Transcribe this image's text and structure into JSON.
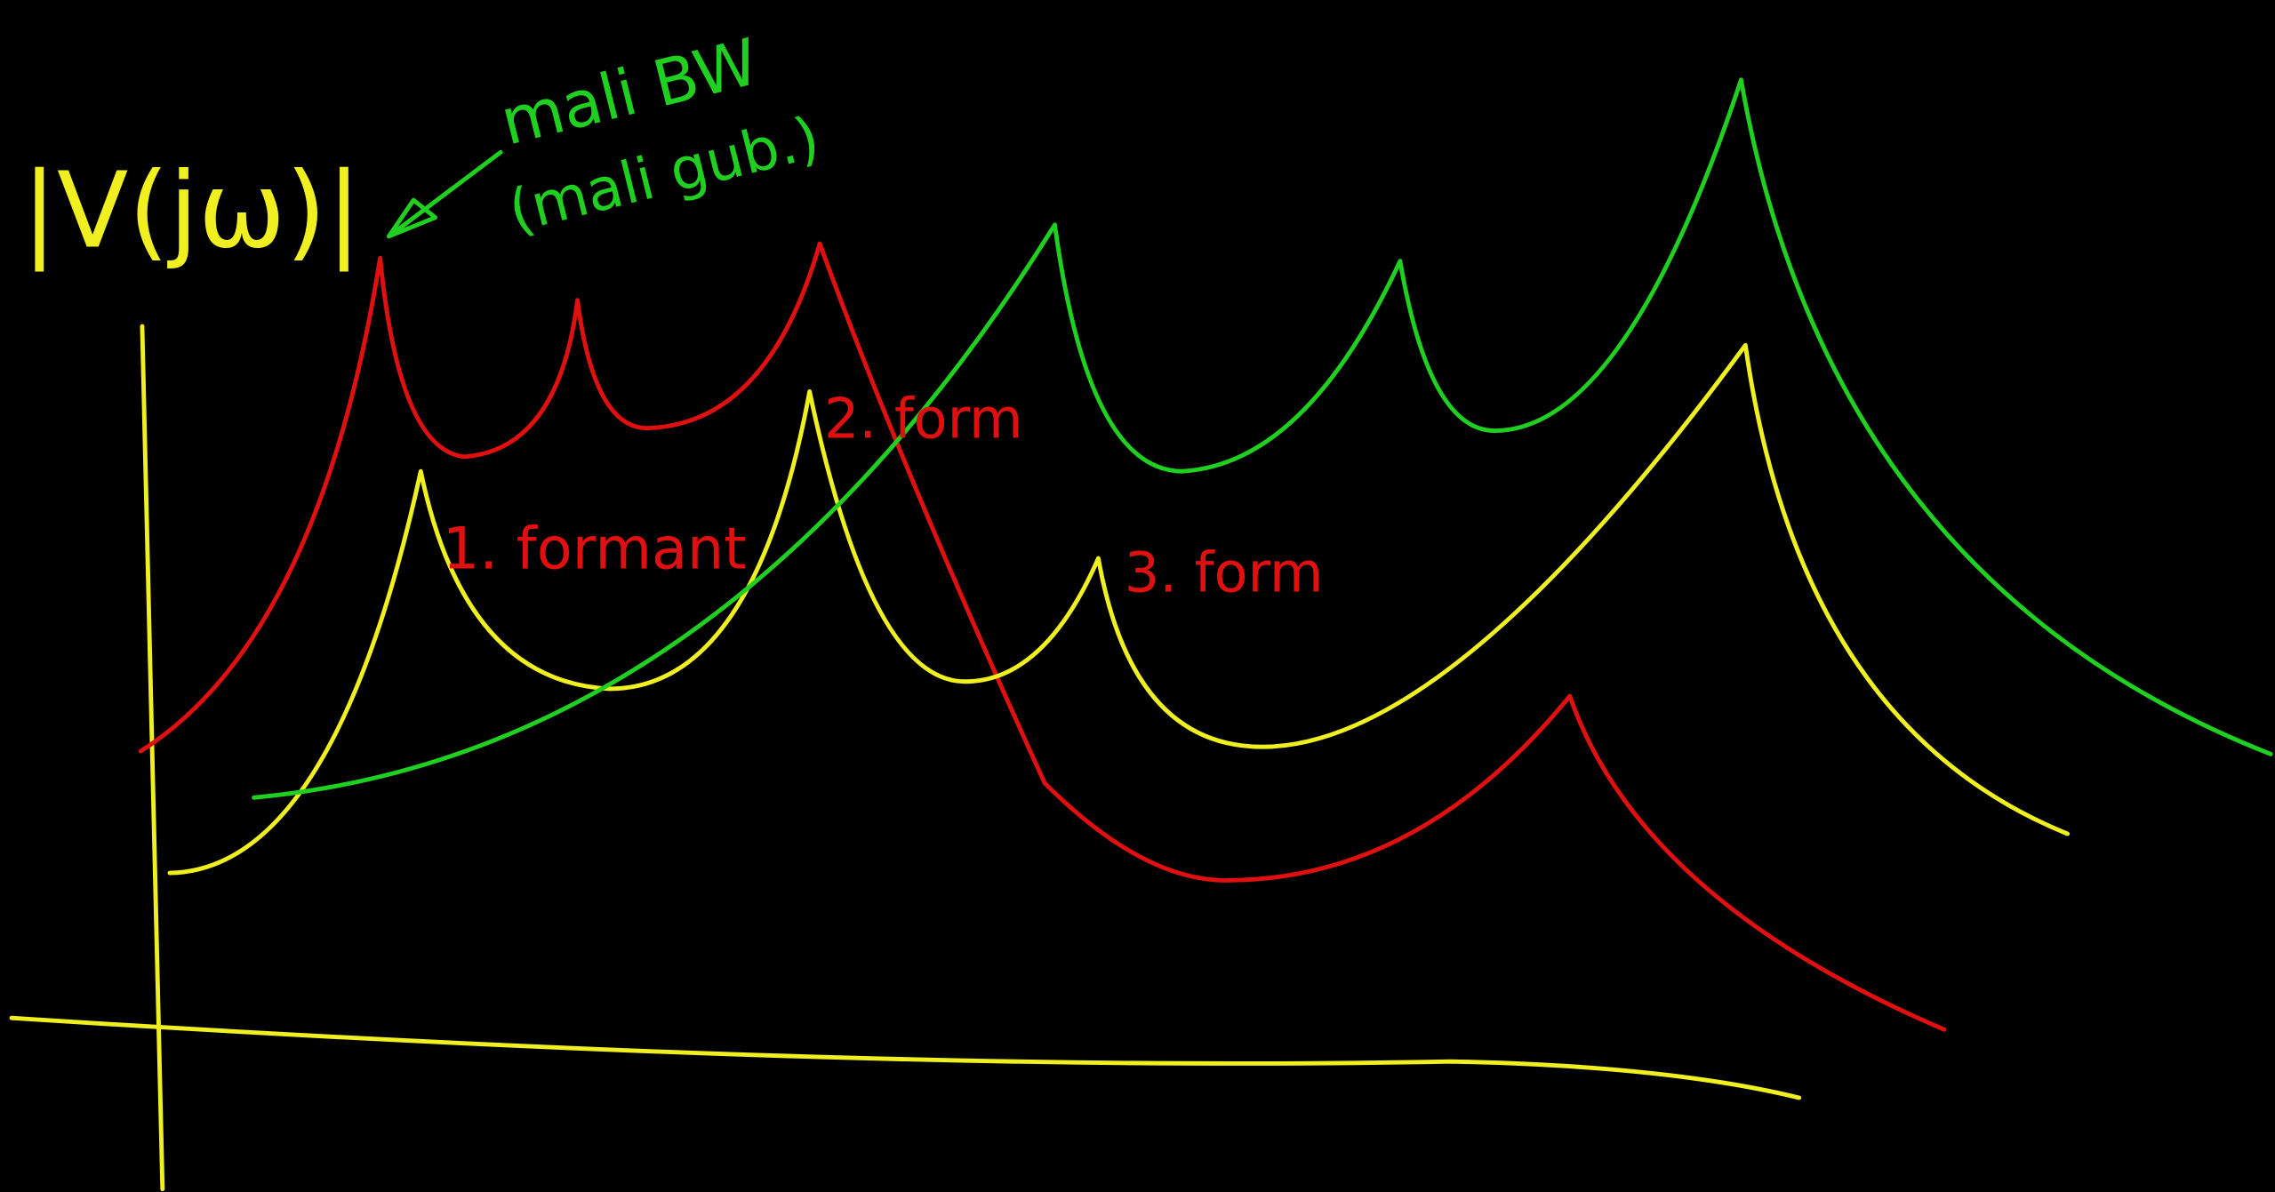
{
  "labels": {
    "axis": "|V(jω)|",
    "note_1": "mali BW",
    "note_2": "(mali gub.)",
    "formant_1": "1. formant",
    "formant_2": "2. form",
    "formant_3": "3. form"
  }
}
